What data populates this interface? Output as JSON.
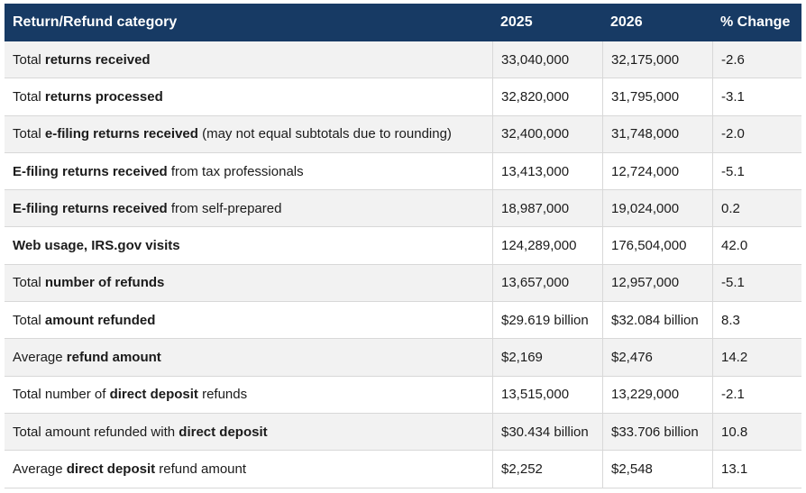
{
  "colors": {
    "header_background": "#173a64",
    "header_text": "#ffffff",
    "row_stripe": "#f2f2f2",
    "row_border": "#d8d8d8",
    "body_text": "#1b1b1b"
  },
  "table": {
    "columns": [
      "Return/Refund category",
      "2025",
      "2026",
      "% Change"
    ],
    "rows": [
      {
        "category": [
          {
            "t": "Total ",
            "b": false
          },
          {
            "t": "returns received",
            "b": true
          }
        ],
        "v2025": "33,040,000",
        "v2026": "32,175,000",
        "pct": "-2.6"
      },
      {
        "category": [
          {
            "t": "Total ",
            "b": false
          },
          {
            "t": "returns processed",
            "b": true
          }
        ],
        "v2025": "32,820,000",
        "v2026": "31,795,000",
        "pct": "-3.1"
      },
      {
        "category": [
          {
            "t": "Total ",
            "b": false
          },
          {
            "t": "e-filing returns received",
            "b": true
          },
          {
            "t": " (may not equal subtotals due to rounding)",
            "b": false
          }
        ],
        "v2025": "32,400,000",
        "v2026": "31,748,000",
        "pct": "-2.0"
      },
      {
        "category": [
          {
            "t": "E-filing returns received",
            "b": true
          },
          {
            "t": " from tax professionals",
            "b": false
          }
        ],
        "v2025": "13,413,000",
        "v2026": "12,724,000",
        "pct": "-5.1"
      },
      {
        "category": [
          {
            "t": "E-filing returns received",
            "b": true
          },
          {
            "t": " from self-prepared",
            "b": false
          }
        ],
        "v2025": "18,987,000",
        "v2026": "19,024,000",
        "pct": "0.2"
      },
      {
        "category": [
          {
            "t": "Web usage, IRS.gov visits",
            "b": true
          }
        ],
        "v2025": "124,289,000",
        "v2026": "176,504,000",
        "pct": "42.0"
      },
      {
        "category": [
          {
            "t": "Total ",
            "b": false
          },
          {
            "t": "number of refunds",
            "b": true
          }
        ],
        "v2025": "13,657,000",
        "v2026": "12,957,000",
        "pct": "-5.1"
      },
      {
        "category": [
          {
            "t": "Total ",
            "b": false
          },
          {
            "t": "amount refunded",
            "b": true
          }
        ],
        "v2025": "$29.619 billion",
        "v2026": "$32.084 billion",
        "pct": "8.3"
      },
      {
        "category": [
          {
            "t": "Average ",
            "b": false
          },
          {
            "t": "refund amount",
            "b": true
          }
        ],
        "v2025": "$2,169",
        "v2026": "$2,476",
        "pct": "14.2"
      },
      {
        "category": [
          {
            "t": "Total number of ",
            "b": false
          },
          {
            "t": "direct deposit",
            "b": true
          },
          {
            "t": " refunds",
            "b": false
          }
        ],
        "v2025": "13,515,000",
        "v2026": "13,229,000",
        "pct": "-2.1"
      },
      {
        "category": [
          {
            "t": "Total amount refunded with ",
            "b": false
          },
          {
            "t": "direct deposit",
            "b": true
          }
        ],
        "v2025": "$30.434 billion",
        "v2026": "$33.706 billion",
        "pct": "10.8"
      },
      {
        "category": [
          {
            "t": "Average ",
            "b": false
          },
          {
            "t": "direct deposit",
            "b": true
          },
          {
            "t": " refund amount",
            "b": false
          }
        ],
        "v2025": "$2,252",
        "v2026": "$2,548",
        "pct": "13.1"
      }
    ]
  },
  "chart_data": {
    "type": "table",
    "columns": [
      "Return/Refund category",
      "2025",
      "2026",
      "% Change"
    ],
    "categories": [
      "Total returns received",
      "Total returns processed",
      "Total e-filing returns received (may not equal subtotals due to rounding)",
      "E-filing returns received from tax professionals",
      "E-filing returns received from self-prepared",
      "Web usage, IRS.gov visits",
      "Total number of refunds",
      "Total amount refunded",
      "Average refund amount",
      "Total number of direct deposit refunds",
      "Total amount refunded with direct deposit",
      "Average direct deposit refund amount"
    ],
    "series": [
      {
        "name": "2025",
        "values": [
          "33,040,000",
          "32,820,000",
          "32,400,000",
          "13,413,000",
          "18,987,000",
          "124,289,000",
          "13,657,000",
          "$29.619 billion",
          "$2,169",
          "13,515,000",
          "$30.434 billion",
          "$2,252"
        ]
      },
      {
        "name": "2026",
        "values": [
          "32,175,000",
          "31,795,000",
          "31,748,000",
          "12,724,000",
          "19,024,000",
          "176,504,000",
          "12,957,000",
          "$32.084 billion",
          "$2,476",
          "13,229,000",
          "$33.706 billion",
          "$2,548"
        ]
      },
      {
        "name": "% Change",
        "values": [
          -2.6,
          -3.1,
          -2.0,
          -5.1,
          0.2,
          42.0,
          -5.1,
          8.3,
          14.2,
          -2.1,
          10.8,
          13.1
        ]
      }
    ]
  }
}
